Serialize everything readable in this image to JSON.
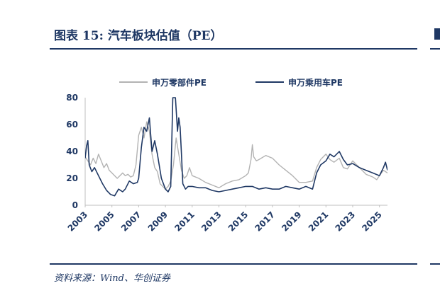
{
  "header": {
    "title": "图表 15:  汽车板块估值（PE）"
  },
  "footer": {
    "source": "资料来源：Wind、华创证券"
  },
  "colors": {
    "navy": "#1f3864",
    "gray": "#b3b3b3"
  },
  "chart_data": {
    "type": "line",
    "title": "",
    "xlabel": "",
    "ylabel": "",
    "ylim": [
      0,
      80
    ],
    "yticks": [
      0,
      20,
      40,
      60,
      80
    ],
    "xlim": [
      2003.0,
      2025.6
    ],
    "xticks": [
      "2003",
      "2005",
      "2007",
      "2009",
      "2011",
      "2013",
      "2015",
      "2017",
      "2019",
      "2021",
      "2023",
      "2025"
    ],
    "grid": false,
    "legend": "top-center",
    "series": [
      {
        "name": "申万零部件PE",
        "color": "#b3b3b3",
        "x": [
          2003.0,
          2003.2,
          2003.4,
          2003.6,
          2003.8,
          2004.0,
          2004.2,
          2004.4,
          2004.6,
          2004.8,
          2005.0,
          2005.2,
          2005.4,
          2005.6,
          2005.8,
          2006.0,
          2006.2,
          2006.4,
          2006.6,
          2006.8,
          2007.0,
          2007.2,
          2007.4,
          2007.6,
          2007.8,
          2008.0,
          2008.2,
          2008.4,
          2008.6,
          2008.8,
          2009.0,
          2009.2,
          2009.4,
          2009.6,
          2009.8,
          2010.0,
          2010.2,
          2010.4,
          2010.6,
          2010.8,
          2011.0,
          2011.5,
          2012.0,
          2012.5,
          2013.0,
          2013.5,
          2014.0,
          2014.5,
          2015.0,
          2015.2,
          2015.4,
          2015.5,
          2015.6,
          2015.8,
          2016.0,
          2016.5,
          2017.0,
          2017.5,
          2018.0,
          2018.5,
          2019.0,
          2019.5,
          2020.0,
          2020.3,
          2020.6,
          2021.0,
          2021.3,
          2021.6,
          2022.0,
          2022.3,
          2022.6,
          2023.0,
          2023.5,
          2024.0,
          2024.5,
          2024.8,
          2025.0,
          2025.3,
          2025.6
        ],
        "values": [
          36,
          33,
          30,
          35,
          31,
          38,
          33,
          28,
          31,
          26,
          24,
          22,
          20,
          22,
          24,
          22,
          23,
          21,
          22,
          30,
          52,
          58,
          50,
          62,
          55,
          38,
          28,
          25,
          16,
          14,
          12,
          14,
          18,
          30,
          50,
          38,
          26,
          20,
          22,
          28,
          22,
          20,
          17,
          15,
          13,
          16,
          18,
          19,
          22,
          24,
          34,
          45,
          36,
          33,
          34,
          37,
          35,
          30,
          26,
          22,
          17,
          17,
          18,
          28,
          34,
          38,
          34,
          32,
          35,
          28,
          27,
          33,
          28,
          23,
          21,
          19,
          22,
          26,
          24
        ]
      },
      {
        "name": "申万乘用车PE",
        "color": "#1f3864",
        "x": [
          2003.0,
          2003.1,
          2003.2,
          2003.3,
          2003.5,
          2003.7,
          2004.0,
          2004.3,
          2004.6,
          2004.9,
          2005.2,
          2005.5,
          2005.8,
          2006.0,
          2006.3,
          2006.6,
          2006.9,
          2007.0,
          2007.2,
          2007.4,
          2007.6,
          2007.8,
          2008.0,
          2008.2,
          2008.4,
          2008.7,
          2009.0,
          2009.2,
          2009.4,
          2009.55,
          2009.65,
          2009.75,
          2009.9,
          2010.0,
          2010.1,
          2010.2,
          2010.3,
          2010.5,
          2010.7,
          2011.0,
          2011.5,
          2012.0,
          2012.5,
          2013.0,
          2013.5,
          2014.0,
          2014.5,
          2015.0,
          2015.5,
          2016.0,
          2016.5,
          2017.0,
          2017.5,
          2018.0,
          2018.5,
          2019.0,
          2019.5,
          2020.0,
          2020.3,
          2020.6,
          2021.0,
          2021.3,
          2021.6,
          2022.0,
          2022.3,
          2022.6,
          2023.0,
          2023.5,
          2024.0,
          2024.5,
          2025.0,
          2025.3,
          2025.45,
          2025.6
        ],
        "values": [
          35,
          44,
          48,
          30,
          25,
          28,
          22,
          16,
          11,
          8,
          7,
          12,
          10,
          12,
          18,
          16,
          17,
          20,
          43,
          58,
          55,
          65,
          40,
          48,
          38,
          20,
          12,
          10,
          14,
          80,
          82,
          80,
          55,
          65,
          58,
          38,
          16,
          12,
          14,
          14,
          13,
          13,
          11,
          10,
          11,
          12,
          13,
          14,
          14,
          12,
          13,
          12,
          12,
          14,
          13,
          12,
          14,
          12,
          24,
          30,
          33,
          38,
          36,
          40,
          34,
          30,
          31,
          28,
          26,
          24,
          22,
          28,
          32,
          26
        ]
      }
    ]
  }
}
